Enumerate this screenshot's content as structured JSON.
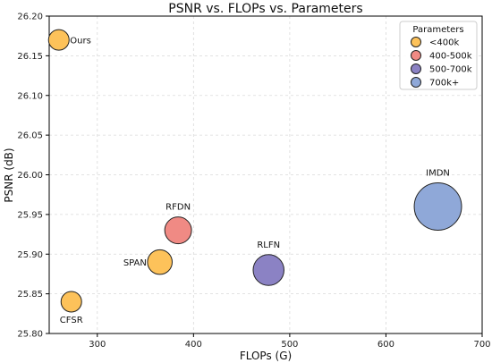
{
  "chart_data": {
    "type": "scatter",
    "title": "PSNR vs. FLOPs vs. Parameters",
    "xlabel": "FLOPs (G)",
    "ylabel": "PSNR (dB)",
    "xlim": [
      250,
      700
    ],
    "ylim": [
      25.8,
      26.2
    ],
    "xticks": [
      300,
      400,
      500,
      600,
      700
    ],
    "yticks": [
      25.8,
      25.85,
      25.9,
      25.95,
      26.0,
      26.05,
      26.1,
      26.15,
      26.2
    ],
    "grid": true,
    "legend": {
      "title": "Parameters",
      "placement": "top-right",
      "entries": [
        {
          "label": "<400k",
          "color": "#fdc25a"
        },
        {
          "label": "400-500k",
          "color": "#f08a84"
        },
        {
          "label": "500-700k",
          "color": "#8b82c4"
        },
        {
          "label": "700k+",
          "color": "#8fa8d8"
        }
      ]
    },
    "points": [
      {
        "label": "Ours",
        "x": 260,
        "y": 26.17,
        "group": "<400k",
        "color": "#fdc25a",
        "size": 1,
        "label_pos": "right"
      },
      {
        "label": "CFSR",
        "x": 273,
        "y": 25.84,
        "group": "<400k",
        "color": "#fdc25a",
        "size": 1,
        "label_pos": "below"
      },
      {
        "label": "SPAN",
        "x": 365,
        "y": 25.89,
        "group": "<400k",
        "color": "#fdc25a",
        "size": 1.2,
        "label_pos": "left"
      },
      {
        "label": "RFDN",
        "x": 384,
        "y": 25.93,
        "group": "400-500k",
        "color": "#f08a84",
        "size": 1.3,
        "label_pos": "above"
      },
      {
        "label": "RLFN",
        "x": 478,
        "y": 25.88,
        "group": "500-700k",
        "color": "#8b82c4",
        "size": 1.5,
        "label_pos": "above"
      },
      {
        "label": "IMDN",
        "x": 654,
        "y": 25.96,
        "group": "700k+",
        "color": "#8fa8d8",
        "size": 2.3,
        "label_pos": "above"
      }
    ]
  }
}
